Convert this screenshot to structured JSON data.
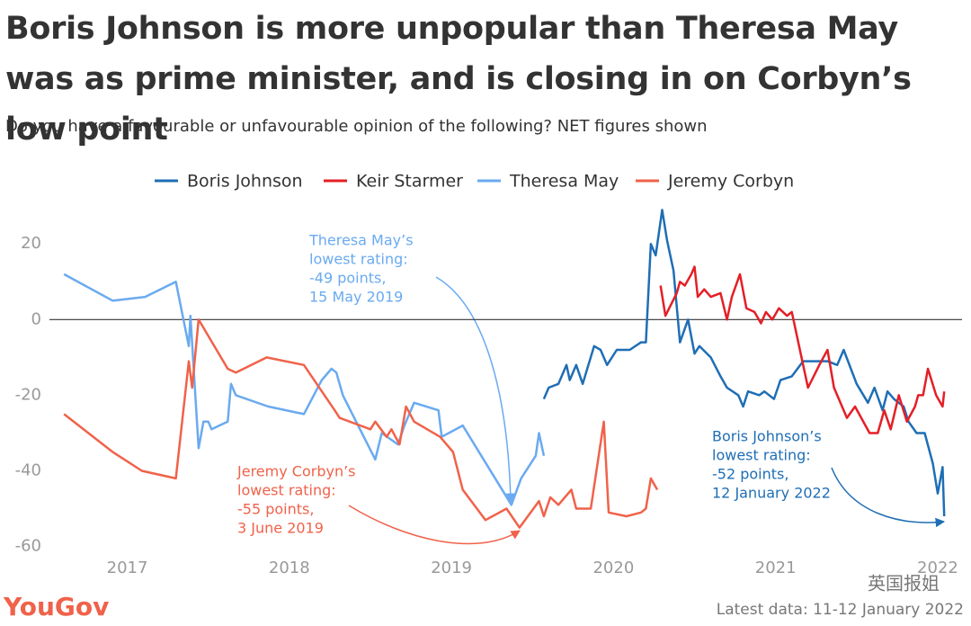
{
  "chart_data": {
    "type": "line",
    "title": "Boris Johnson is more unpopular than Theresa May was as prime minister, and is closing in on Corbyn’s low point",
    "subtitle": "Do you have a favourable or unfavourable opinion of the following? NET figures shown",
    "xlim": [
      2016.52,
      2022.15
    ],
    "xticks": [
      2017,
      2018,
      2019,
      2020,
      2021,
      2022
    ],
    "ylim": [
      -62,
      31
    ],
    "yticks": [
      -60,
      -40,
      -20,
      0,
      20
    ],
    "zero_line": true,
    "series": [
      {
        "name": "Boris Johnson",
        "color": "#1f6eb5",
        "x": [
          2019.57,
          2019.6,
          2019.66,
          2019.71,
          2019.73,
          2019.77,
          2019.81,
          2019.88,
          2019.92,
          2019.96,
          2020.02,
          2020.1,
          2020.17,
          2020.2,
          2020.23,
          2020.26,
          2020.3,
          2020.33,
          2020.37,
          2020.41,
          2020.46,
          2020.5,
          2020.53,
          2020.6,
          2020.66,
          2020.7,
          2020.77,
          2020.8,
          2020.83,
          2020.9,
          2020.93,
          2020.99,
          2021.03,
          2021.1,
          2021.17,
          2021.32,
          2021.38,
          2021.42,
          2021.5,
          2021.57,
          2021.61,
          2021.66,
          2021.69,
          2021.73,
          2021.79,
          2021.82,
          2021.87,
          2021.92,
          2021.97,
          2022.0,
          2022.03,
          2022.04
        ],
        "values": [
          -21,
          -18,
          -17,
          -12,
          -16,
          -12,
          -17,
          -7,
          -8,
          -12,
          -8,
          -8,
          -6,
          -6,
          20,
          17,
          29,
          21,
          13,
          -6,
          0,
          -9,
          -7,
          -10,
          -15,
          -18,
          -20,
          -23,
          -19,
          -20,
          -19,
          -21,
          -16,
          -15,
          -11,
          -11,
          -12,
          -8,
          -17,
          -22,
          -18,
          -24,
          -19,
          -21,
          -23,
          -27,
          -30,
          -30,
          -38,
          -46,
          -39,
          -52
        ]
      },
      {
        "name": "Keir Starmer",
        "color": "#e41f26",
        "x": [
          2020.29,
          2020.32,
          2020.39,
          2020.41,
          2020.44,
          2020.48,
          2020.5,
          2020.52,
          2020.56,
          2020.6,
          2020.66,
          2020.7,
          2020.73,
          2020.78,
          2020.82,
          2020.87,
          2020.91,
          2020.94,
          2020.98,
          2021.02,
          2021.07,
          2021.1,
          2021.14,
          2021.2,
          2021.27,
          2021.32,
          2021.36,
          2021.44,
          2021.49,
          2021.58,
          2021.63,
          2021.67,
          2021.71,
          2021.76,
          2021.81,
          2021.86,
          2021.88,
          2021.91,
          2021.94,
          2021.99,
          2022.03,
          2022.04
        ],
        "values": [
          9,
          1,
          7,
          10,
          9,
          12,
          14,
          6,
          8,
          6,
          7,
          0,
          6,
          12,
          3,
          2,
          -1,
          2,
          0,
          3,
          1,
          2,
          -6,
          -18,
          -12,
          -8,
          -18,
          -26,
          -23,
          -30,
          -30,
          -24,
          -29,
          -20,
          -27,
          -23,
          -20,
          -20,
          -13,
          -20,
          -23,
          -19
        ]
      },
      {
        "name": "Theresa May",
        "color": "#6aaaf0",
        "x": [
          2016.61,
          2016.91,
          2017.11,
          2017.3,
          2017.38,
          2017.39,
          2017.44,
          2017.47,
          2017.5,
          2017.52,
          2017.62,
          2017.64,
          2017.67,
          2017.87,
          2018.09,
          2018.2,
          2018.26,
          2018.29,
          2018.33,
          2018.53,
          2018.57,
          2018.67,
          2018.71,
          2018.77,
          2018.92,
          2018.94,
          2019.07,
          2019.37,
          2019.43,
          2019.52,
          2019.54,
          2019.57
        ],
        "values": [
          12,
          5,
          6,
          10,
          -7,
          1,
          -34,
          -27,
          -27,
          -29,
          -27,
          -17,
          -20,
          -23,
          -25,
          -16,
          -13,
          -14,
          -20,
          -37,
          -30,
          -33,
          -28,
          -22,
          -24,
          -31,
          -28,
          -49,
          -42,
          -36,
          -30,
          -36
        ]
      },
      {
        "name": "Jeremy Corbyn",
        "color": "#f0624a",
        "x": [
          2016.61,
          2016.91,
          2017.09,
          2017.3,
          2017.38,
          2017.4,
          2017.44,
          2017.62,
          2017.67,
          2017.86,
          2018.09,
          2018.28,
          2018.31,
          2018.5,
          2018.53,
          2018.6,
          2018.63,
          2018.68,
          2018.72,
          2018.77,
          2018.93,
          2019.01,
          2019.07,
          2019.21,
          2019.34,
          2019.42,
          2019.54,
          2019.57,
          2019.61,
          2019.66,
          2019.74,
          2019.77,
          2019.86,
          2019.94,
          2019.97,
          2020.08,
          2020.17,
          2020.2,
          2020.23,
          2020.27
        ],
        "values": [
          -25,
          -35,
          -40,
          -42,
          -11,
          -18,
          0,
          -13,
          -14,
          -10,
          -12,
          -24,
          -26,
          -29,
          -27,
          -31,
          -29,
          -33,
          -23,
          -27,
          -31,
          -35,
          -45,
          -53,
          -50,
          -55,
          -48,
          -52,
          -47,
          -49,
          -45,
          -50,
          -50,
          -27,
          -51,
          -52,
          -51,
          -50,
          -42,
          -45
        ]
      }
    ],
    "annotations": [
      {
        "lines": [
          "Theresa May’s",
          "lowest rating:",
          "-49 points,",
          "15 May 2019"
        ],
        "color": "#6aaaf0"
      },
      {
        "lines": [
          "Jeremy Corbyn’s",
          "lowest rating:",
          "-55 points,",
          "3 June 2019"
        ],
        "color": "#f0624a"
      },
      {
        "lines": [
          "Boris Johnson’s",
          "lowest rating:",
          "-52 points,",
          "12 January 2022"
        ],
        "color": "#1f6eb5"
      }
    ],
    "logo": "YouGov",
    "note": "Latest data: 11-12 January 2022",
    "watermark": "英国报姐"
  }
}
